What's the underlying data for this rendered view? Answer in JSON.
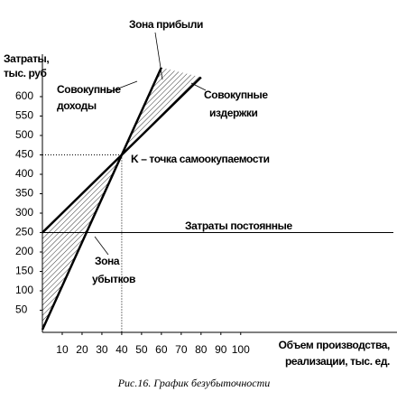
{
  "chart_data": {
    "type": "line",
    "caption": "Рис.16.  График безубыточности",
    "y_label": [
      "Затраты,",
      "тыс. руб"
    ],
    "x_label": [
      "Объем производства,",
      "реализации, тыс. ед."
    ],
    "xlim": [
      0,
      177
    ],
    "ylim": [
      0,
      686
    ],
    "xticks": [
      10,
      20,
      30,
      40,
      50,
      60,
      70,
      80,
      90,
      100
    ],
    "yticks": [
      50,
      100,
      150,
      200,
      250,
      300,
      350,
      400,
      450,
      500,
      550,
      600
    ],
    "series": [
      {
        "label": [
          "Совокупные",
          "доходы"
        ],
        "color": "#000000",
        "x": [
          0,
          40,
          60
        ],
        "values": [
          0,
          450,
          675
        ]
      },
      {
        "label": [
          "Совокупные",
          "издержки"
        ],
        "color": "#000000",
        "x": [
          0,
          40,
          80
        ],
        "values": [
          250,
          450,
          650
        ]
      },
      {
        "label": [
          "Затраты постоянные"
        ],
        "color": "#000000",
        "x": [
          0,
          177
        ],
        "values": [
          250,
          250
        ]
      }
    ],
    "break_even": {
      "label": "K – точка самоокупаемости",
      "x": 40,
      "y": 450
    },
    "zones": {
      "profit": "Зона прибыли",
      "loss": [
        "Зона",
        "убытков"
      ]
    }
  }
}
